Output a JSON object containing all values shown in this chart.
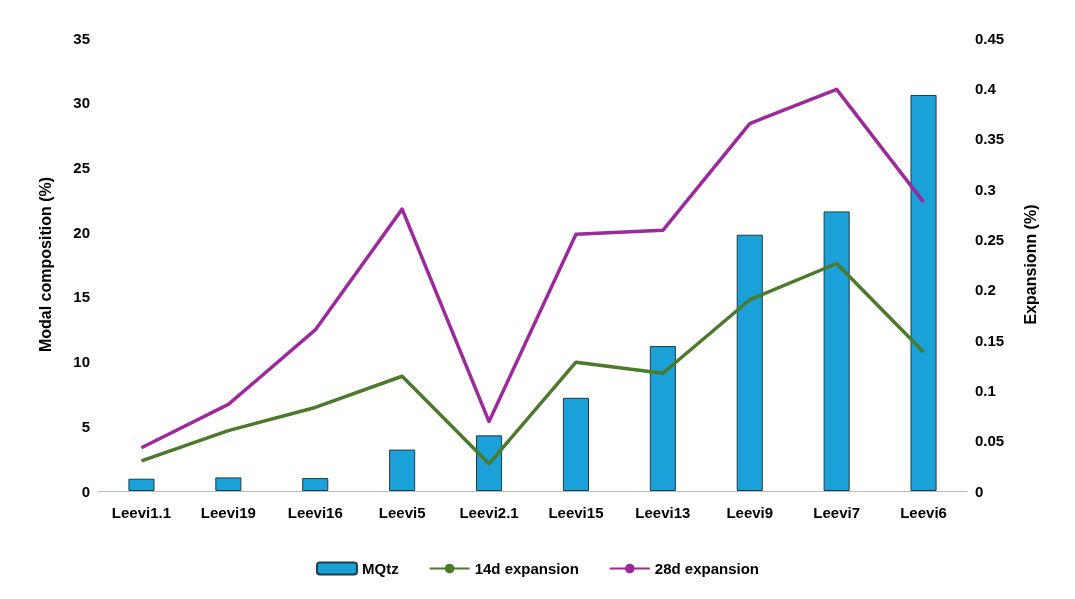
{
  "chart_data": {
    "type": "bar",
    "categories": [
      "Leevi1.1",
      "Leevi19",
      "Leevi16",
      "Leevi5",
      "Leevi2.1",
      "Leevi15",
      "Leevi13",
      "Leevi9",
      "Leevi7",
      "Leevi6"
    ],
    "series": [
      {
        "name": "MQtz",
        "color": "#1ba1d8",
        "values": [
          0.95,
          1.05,
          1.0,
          3.2,
          4.3,
          7.2,
          11.2,
          19.8,
          21.6,
          30.6
        ]
      },
      {
        "name": "14d expansion",
        "type": "line",
        "axis": "y2",
        "color": "#4a7a2a",
        "values": [
          0.03,
          0.06,
          0.083,
          0.114,
          0.027,
          0.128,
          0.117,
          0.19,
          0.226,
          0.138
        ]
      },
      {
        "name": "28d expansion",
        "type": "line",
        "axis": "y2",
        "color": "#9c2a9c",
        "values": [
          0.043,
          0.086,
          0.16,
          0.28,
          0.069,
          0.255,
          0.259,
          0.365,
          0.399,
          0.287
        ]
      }
    ],
    "ylabel": "Modal composition (%)",
    "y2label": "Expansionn (%)",
    "ylim": [
      0,
      35
    ],
    "yticks": [
      0,
      5,
      10,
      15,
      20,
      25,
      30,
      35
    ],
    "y2lim": [
      0,
      0.45
    ],
    "y2ticks": [
      0,
      0.05,
      0.1,
      0.15,
      0.2,
      0.25,
      0.3,
      0.35,
      0.4,
      0.45
    ],
    "grid": false,
    "legend": "bottom",
    "marker": "none",
    "line_style": "solid"
  }
}
